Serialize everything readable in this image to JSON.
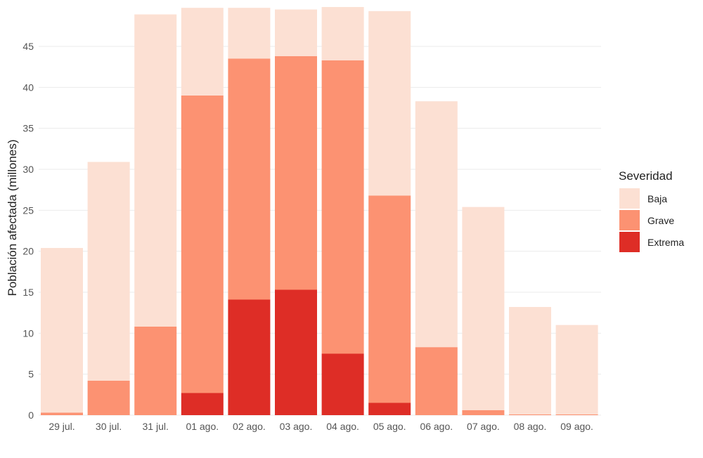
{
  "chart_data": {
    "type": "bar",
    "stacked": true,
    "title": "",
    "xlabel": "",
    "ylabel": "Población afectada (millones)",
    "ylim": [
      0,
      50
    ],
    "yticks": [
      0,
      5,
      10,
      15,
      20,
      25,
      30,
      35,
      40,
      45
    ],
    "grid": true,
    "categories": [
      "29 jul.",
      "30 jul.",
      "31 jul.",
      "01 ago.",
      "02 ago.",
      "03 ago.",
      "04 ago.",
      "05 ago.",
      "06 ago.",
      "07 ago.",
      "08 ago.",
      "09 ago."
    ],
    "series": [
      {
        "name": "Extrema",
        "color": "#de2d26",
        "values": [
          0,
          0,
          0,
          2.7,
          14.1,
          15.3,
          7.5,
          1.5,
          0,
          0,
          0,
          0
        ]
      },
      {
        "name": "Grave",
        "color": "#fc9272",
        "values": [
          0.3,
          4.2,
          10.8,
          36.3,
          29.4,
          28.5,
          35.8,
          25.3,
          8.3,
          0.6,
          0.1,
          0.1
        ]
      },
      {
        "name": "Baja",
        "color": "#fce0d3",
        "values": [
          20.1,
          26.7,
          38.1,
          10.7,
          6.2,
          5.7,
          6.5,
          22.5,
          30.0,
          24.8,
          13.1,
          10.9
        ]
      }
    ],
    "legend": {
      "title": "Severidad",
      "position": "right",
      "entries": [
        "Baja",
        "Grave",
        "Extrema"
      ]
    }
  }
}
